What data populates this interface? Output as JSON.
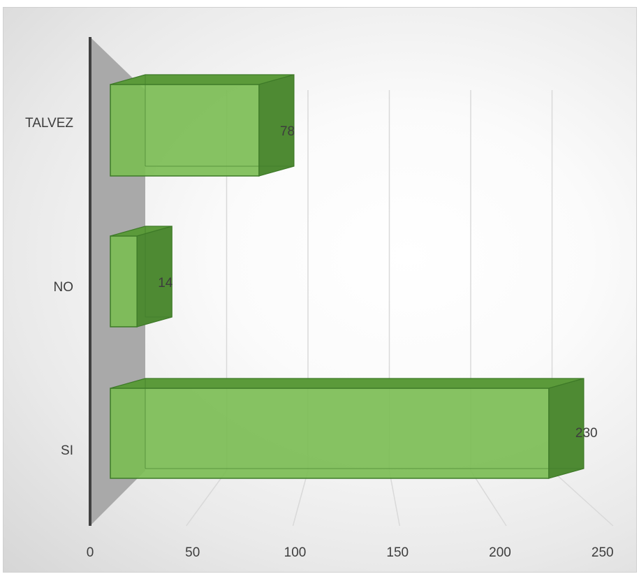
{
  "chart_data": {
    "type": "bar",
    "orientation": "horizontal",
    "style": "3d",
    "categories": [
      "TALVEZ",
      "NO",
      "SI"
    ],
    "values": [
      78,
      14,
      230
    ],
    "data_labels": [
      "78",
      "14",
      "230"
    ],
    "xlim": [
      0,
      250
    ],
    "x_ticks": [
      0,
      50,
      100,
      150,
      200,
      250
    ],
    "x_tick_labels": [
      "0",
      "50",
      "100",
      "150",
      "200",
      "250"
    ],
    "grid": true,
    "legend": "none",
    "colors": {
      "bar_front": "#7cbd55",
      "bar_top": "#5b9a3a",
      "bar_side": "#4e8a33",
      "bar_edge": "#3e7a28",
      "back_wall": "#a9a9a9",
      "axis_line": "#404040",
      "grid_line": "#d9d9d9",
      "text": "#3d3d3d"
    }
  }
}
